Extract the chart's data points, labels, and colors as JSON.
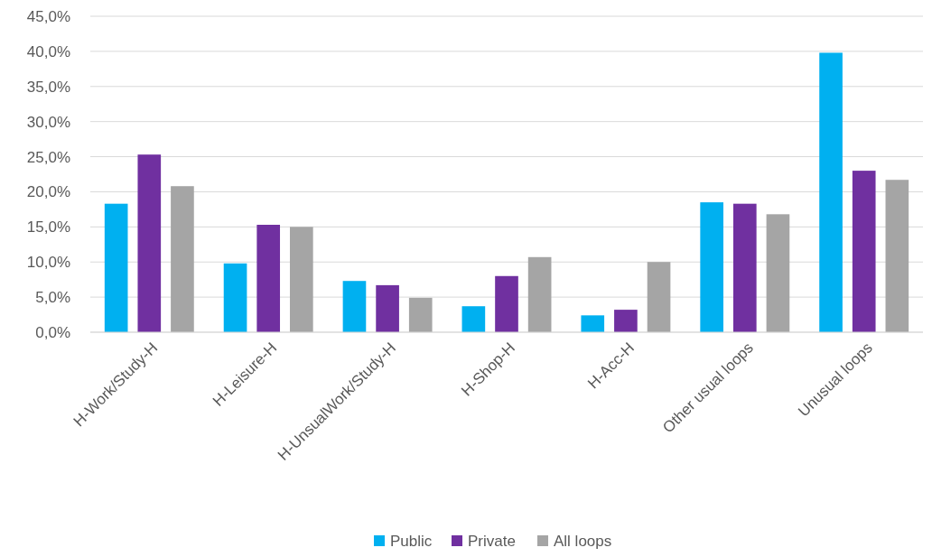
{
  "chart_data": {
    "type": "bar",
    "categories": [
      "H-Work/Study-H",
      "H-Leisure-H",
      "H-UnsualWork/Study-H",
      "H-Shop-H",
      "H-Acc-H",
      "Other usual loops",
      "Unusual loops"
    ],
    "series": [
      {
        "name": "Public",
        "color": "#00b0f0",
        "values": [
          18.3,
          9.8,
          7.3,
          3.7,
          2.4,
          18.5,
          39.8
        ]
      },
      {
        "name": "Private",
        "color": "#7030a0",
        "values": [
          25.3,
          15.3,
          6.7,
          8.0,
          3.2,
          18.3,
          23.0
        ]
      },
      {
        "name": "All loops",
        "color": "#a5a5a5",
        "values": [
          20.8,
          15.0,
          4.9,
          10.7,
          10.0,
          16.8,
          21.7
        ]
      }
    ],
    "ylim": [
      0,
      45
    ],
    "yticks": [
      {
        "value": 0,
        "label": "0,0%"
      },
      {
        "value": 5,
        "label": "5,0%"
      },
      {
        "value": 10,
        "label": "10,0%"
      },
      {
        "value": 15,
        "label": "15,0%"
      },
      {
        "value": 20,
        "label": "20,0%"
      },
      {
        "value": 25,
        "label": "25,0%"
      },
      {
        "value": 30,
        "label": "30,0%"
      },
      {
        "value": 35,
        "label": "35,0%"
      },
      {
        "value": 40,
        "label": "40,0%"
      },
      {
        "value": 45,
        "label": "45,0%"
      }
    ],
    "grid": "y",
    "legend": "bottom"
  }
}
